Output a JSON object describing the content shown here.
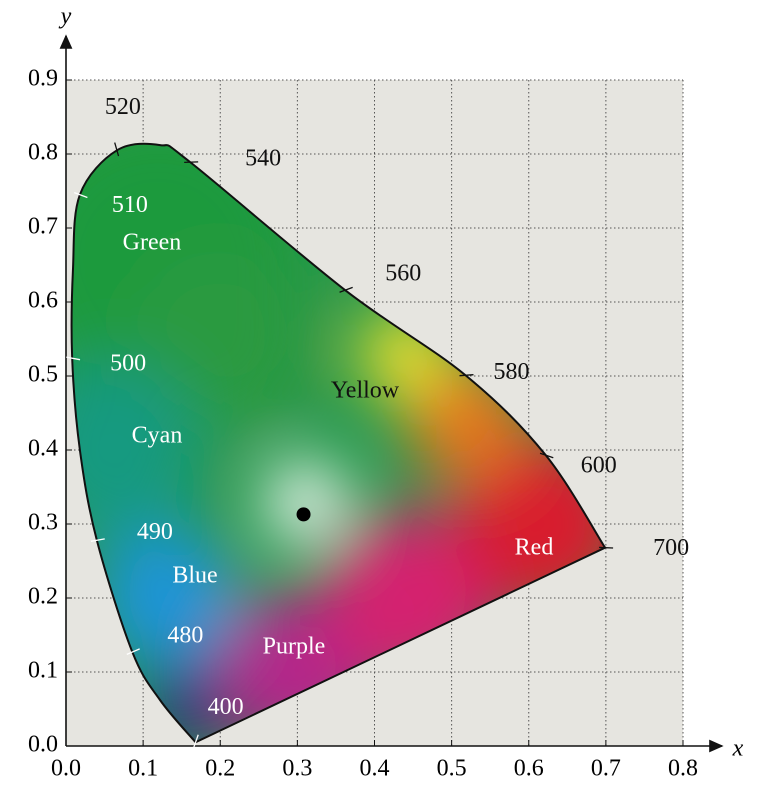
{
  "chart_data": {
    "type": "chromaticity",
    "x_label": "x",
    "y_label": "y",
    "xlim": [
      0,
      0.8
    ],
    "ylim": [
      0,
      0.9
    ],
    "xticks": [
      {
        "value": 0,
        "label": "0.0"
      },
      0.1,
      0.2,
      0.3,
      0.4,
      0.5,
      0.6,
      0.7,
      0.8
    ],
    "yticks": [
      {
        "value": 0,
        "label": "0.0"
      },
      0.1,
      0.2,
      0.3,
      0.4,
      0.5,
      0.6,
      0.7,
      0.8,
      0.9
    ],
    "grid": true,
    "locus": {
      "wavelengths": [
        400,
        null,
        480,
        490,
        null,
        500,
        null,
        510,
        520,
        null,
        540,
        560,
        580,
        600,
        700
      ],
      "x": [
        0.168,
        0.122,
        0.086,
        0.04,
        0.018,
        0.008,
        0.009,
        0.018,
        0.066,
        0.122,
        0.161,
        0.362,
        0.518,
        0.622,
        0.699
      ],
      "y": [
        0.005,
        0.062,
        0.127,
        0.278,
        0.4,
        0.524,
        0.643,
        0.745,
        0.805,
        0.812,
        0.789,
        0.616,
        0.501,
        0.393,
        0.268
      ]
    },
    "white_point": {
      "x": 0.308,
      "y": 0.313
    },
    "regions": [
      "Green",
      "Cyan",
      "Blue",
      "Purple",
      "Yellow",
      "Red"
    ]
  }
}
